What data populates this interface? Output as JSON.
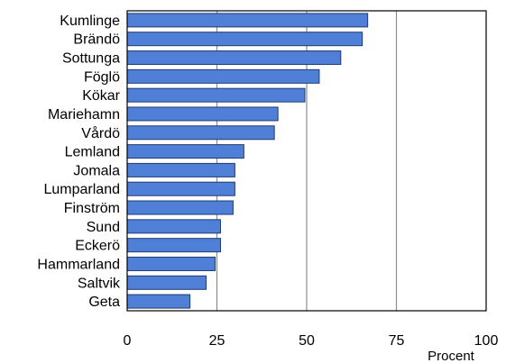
{
  "chart_data": {
    "type": "bar",
    "orientation": "horizontal",
    "categories": [
      "Kumlinge",
      "Brändö",
      "Sottunga",
      "Föglö",
      "Kökar",
      "Mariehamn",
      "Vårdö",
      "Lemland",
      "Jomala",
      "Lumparland",
      "Finström",
      "Sund",
      "Eckerö",
      "Hammarland",
      "Saltvik",
      "Geta"
    ],
    "values": [
      67,
      65.5,
      59.5,
      53.5,
      49.5,
      42,
      41,
      32.5,
      30,
      30,
      29.5,
      26,
      26,
      24.5,
      22,
      17.5
    ],
    "xlim": [
      0,
      100
    ],
    "xticks": [
      "0",
      "25",
      "50",
      "75",
      "100"
    ],
    "xlabel": "Procent",
    "grid": "vertical",
    "bar_color": "#4f7fd6",
    "bar_edge_color": "#1f3c70"
  }
}
